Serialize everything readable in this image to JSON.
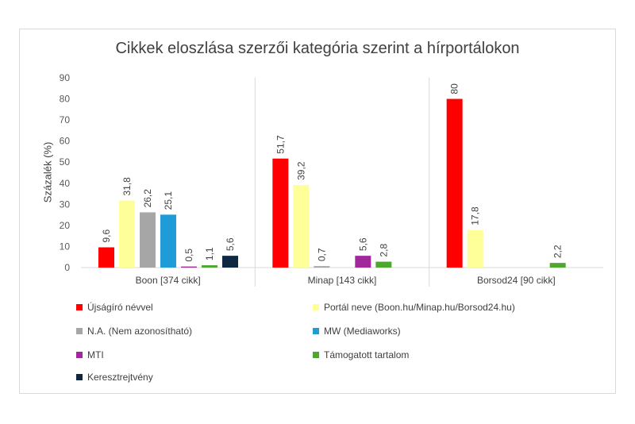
{
  "chart_data": {
    "type": "bar",
    "title": "Cikkek eloszlása szerzői kategória szerint a hírportálokon",
    "xlabel": "",
    "ylabel": "Százalék (%)",
    "ylim": [
      0,
      90
    ],
    "yticks": [
      0,
      10,
      20,
      30,
      40,
      50,
      60,
      70,
      80,
      90
    ],
    "grid": false,
    "legend_position": "bottom",
    "categories": [
      "Boon [374 cikk]",
      "Minap [143 cikk]",
      "Borsod24 [90 cikk]"
    ],
    "series": [
      {
        "name": "Újságíró névvel",
        "color": "#ff0000",
        "values": [
          9.6,
          51.7,
          80
        ],
        "labels": [
          "9,6",
          "51,7",
          "80"
        ]
      },
      {
        "name": "Portál neve (Boon.hu/Minap.hu/Borsod24.hu)",
        "color": "#ffff99",
        "values": [
          31.8,
          39.2,
          17.8
        ],
        "labels": [
          "31,8",
          "39,2",
          "17,8"
        ]
      },
      {
        "name": "N.A. (Nem azonosítható)",
        "color": "#a6a6a6",
        "values": [
          26.2,
          0.7,
          null
        ],
        "labels": [
          "26,2",
          "0,7",
          ""
        ]
      },
      {
        "name": "MW (Mediaworks)",
        "color": "#1f9bd7",
        "values": [
          25.1,
          null,
          null
        ],
        "labels": [
          "25,1",
          "",
          ""
        ]
      },
      {
        "name": "MTI",
        "color": "#a0289b",
        "values": [
          0.5,
          5.6,
          null
        ],
        "labels": [
          "0,5",
          "5,6",
          ""
        ]
      },
      {
        "name": "Támogatott tartalom",
        "color": "#4ea72e",
        "values": [
          1.1,
          2.8,
          2.2
        ],
        "labels": [
          "1,1",
          "2,8",
          "2,2"
        ]
      },
      {
        "name": "Keresztrejtvény",
        "color": "#0e2841",
        "values": [
          5.6,
          null,
          null
        ],
        "labels": [
          "5,6",
          "",
          ""
        ]
      }
    ]
  }
}
